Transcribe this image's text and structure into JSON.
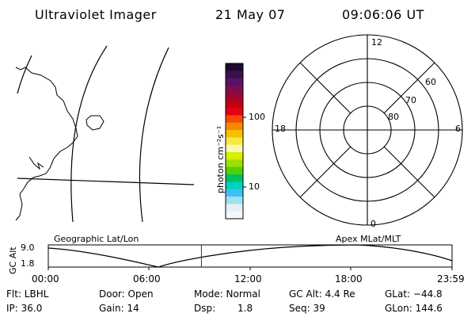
{
  "header": {
    "instrument": "Ultraviolet Imager",
    "date": "21 May 07",
    "time": "09:06:06 UT"
  },
  "colorbar": {
    "unit_label": "photon cm⁻²s⁻¹",
    "tick_labels": [
      "100",
      "10"
    ],
    "colors": [
      "#1c0a30",
      "#3a1150",
      "#5a1262",
      "#7a0f50",
      "#9a0830",
      "#c10010",
      "#e20015",
      "#f54a00",
      "#f88800",
      "#f8c000",
      "#f8e840",
      "#f8f8b0",
      "#d6f000",
      "#a0e000",
      "#50d000",
      "#00c060",
      "#00d0c0",
      "#40c0f0",
      "#a0e0f0",
      "#dff2f4",
      "#f4f8fa"
    ]
  },
  "polar": {
    "mlt_labels": {
      "top": "12",
      "left": "18",
      "right": "6",
      "bottom": "0"
    },
    "lat_labels": [
      "60",
      "70",
      "80"
    ]
  },
  "timeline": {
    "left_title": "Geographic Lat/Lon",
    "right_title": "Apex MLat/MLT",
    "axis_label": "GC Alt",
    "y_ticks": [
      "9.0",
      "1.8"
    ],
    "x_ticks": [
      "00:00",
      "06:00",
      "12:00",
      "18:00",
      "23:59"
    ],
    "marker_time_hours": 9.1,
    "curve_color": "#000000",
    "marker_color": "#c00000"
  },
  "info": {
    "filter": "Flt: LBHL",
    "ip": "IP: 36.0",
    "door": "Door: Open",
    "gain": "Gain: 14",
    "mode": "Mode: Normal",
    "dsp_label": "Dsp:",
    "dsp_value": "1.8",
    "gc_alt": "GC Alt: 4.4 Re",
    "seq": "Seq: 39",
    "glat": "GLat: −44.8",
    "glon": "GLon: 144.6"
  }
}
